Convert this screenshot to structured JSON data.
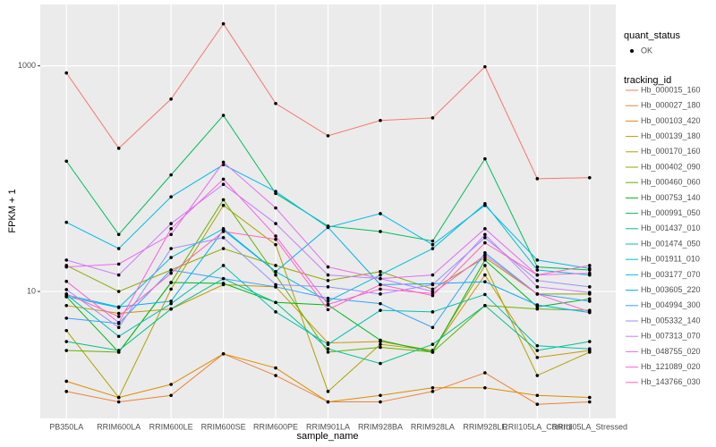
{
  "chart_data": {
    "type": "line",
    "x_label": "sample_name",
    "y_label": "FPKM + 1",
    "log_y": true,
    "grid": true,
    "legend_title": "tracking_id",
    "point_legend_title": "quant_status",
    "point_legend_label": "OK",
    "categories": [
      "PB350LA",
      "RRIM600LA",
      "RRIM600LE",
      "RRIM600SE",
      "RRIM600PE",
      "RRIM901LA",
      "RRIM928BA",
      "RRIM928LA",
      "RRIM928LE",
      "RRII105LA_Control",
      "RRII105LA_Stressed"
    ],
    "ylim": [
      0.75,
      3500
    ],
    "yticks": [
      10,
      1000
    ],
    "series": [
      {
        "name": "Hb_000015_160",
        "color": "#F8766D",
        "values": [
          865,
          186,
          508,
          2360,
          464,
          240,
          328,
          346,
          982,
          100,
          102
        ]
      },
      {
        "name": "Hb_000027_180",
        "color": "#EC8239",
        "values": [
          1.3,
          1.05,
          1.2,
          2.8,
          1.8,
          1.05,
          1.05,
          1.3,
          1.9,
          1.0,
          1.05
        ]
      },
      {
        "name": "Hb_000103_420",
        "color": "#DB8E00",
        "values": [
          1.6,
          1.15,
          1.5,
          2.8,
          2.1,
          1.05,
          1.2,
          1.4,
          1.4,
          1.2,
          1.15
        ]
      },
      {
        "name": "Hb_000139_180",
        "color": "#C79800",
        "values": [
          7.5,
          6.4,
          7.0,
          11.5,
          11.0,
          3.5,
          3.6,
          3.0,
          14,
          2.6,
          3.0
        ]
      },
      {
        "name": "Hb_000170_160",
        "color": "#AEA200",
        "values": [
          4.5,
          1.15,
          10.5,
          58,
          26,
          1.3,
          3.4,
          3.0,
          17,
          1.8,
          2.9
        ]
      },
      {
        "name": "Hb_000402_090",
        "color": "#8FAA00",
        "values": [
          17,
          10,
          15.5,
          24,
          17,
          12.5,
          15,
          10.5,
          20,
          9.5,
          9.5
        ]
      },
      {
        "name": "Hb_000460_060",
        "color": "#64B200",
        "values": [
          3.0,
          2.9,
          12,
          65,
          14,
          2.9,
          3.2,
          2.9,
          7.5,
          7.0,
          6.8
        ]
      },
      {
        "name": "Hb_000753_140",
        "color": "#00B81B",
        "values": [
          9,
          2.9,
          12,
          11.8,
          8,
          7.6,
          3.7,
          2.9,
          19,
          7.3,
          8.6
        ]
      },
      {
        "name": "Hb_000991_050",
        "color": "#00BD5C",
        "values": [
          143,
          32,
          108,
          364,
          74,
          38,
          34,
          28,
          150,
          16.5,
          15.5
        ]
      },
      {
        "name": "Hb_001437_010",
        "color": "#00C08B",
        "values": [
          3.6,
          3.0,
          7,
          13,
          8,
          3.1,
          2.3,
          3.4,
          7.5,
          3.0,
          3.6
        ]
      },
      {
        "name": "Hb_001474_050",
        "color": "#00C1B2",
        "values": [
          9.4,
          4,
          7.8,
          17,
          6.6,
          3.4,
          6.8,
          6.6,
          9.4,
          3.3,
          3.1
        ]
      },
      {
        "name": "Hb_001911_010",
        "color": "#00BFD4",
        "values": [
          9,
          7.2,
          20,
          36,
          15,
          8.2,
          14,
          24,
          60,
          15.5,
          14
        ]
      },
      {
        "name": "Hb_003177_070",
        "color": "#00BAE9",
        "values": [
          41,
          24,
          69,
          133,
          77,
          37,
          49,
          26,
          58,
          19,
          16
        ]
      },
      {
        "name": "Hb_003605_220",
        "color": "#00B0F6",
        "values": [
          9.3,
          7.3,
          8.2,
          35,
          15,
          37,
          11.5,
          11.7,
          12.2,
          7.6,
          6.5
        ]
      },
      {
        "name": "Hb_004994_300",
        "color": "#35A2FF",
        "values": [
          5.8,
          5.2,
          15.5,
          13,
          11,
          8.7,
          7.8,
          4.8,
          22,
          9.5,
          8.2
        ]
      },
      {
        "name": "Hb_005332_140",
        "color": "#9590FF",
        "values": [
          10.4,
          4.8,
          24,
          30,
          11.5,
          11,
          9.5,
          11.5,
          30,
          12.5,
          11
        ]
      },
      {
        "name": "Hb_007313_070",
        "color": "#C77CFF",
        "values": [
          19,
          14,
          40,
          89,
          40,
          14,
          13,
          10,
          32,
          11,
          9.8
        ]
      },
      {
        "name": "Hb_048755_020",
        "color": "#E76BF3",
        "values": [
          16.5,
          17.5,
          32,
          140,
          55,
          16.5,
          13,
          14,
          36,
          14,
          14.5
        ]
      },
      {
        "name": "Hb_121089_020",
        "color": "#FA62DB",
        "values": [
          12.3,
          5.3,
          36,
          99,
          31,
          7.7,
          10.5,
          9.6,
          21,
          9.5,
          6.6
        ]
      },
      {
        "name": "Hb_143766_030",
        "color": "#FF62BC",
        "values": [
          9.5,
          6.0,
          14.5,
          34,
          29,
          6.9,
          11.5,
          9.2,
          27,
          14,
          17
        ]
      }
    ]
  }
}
